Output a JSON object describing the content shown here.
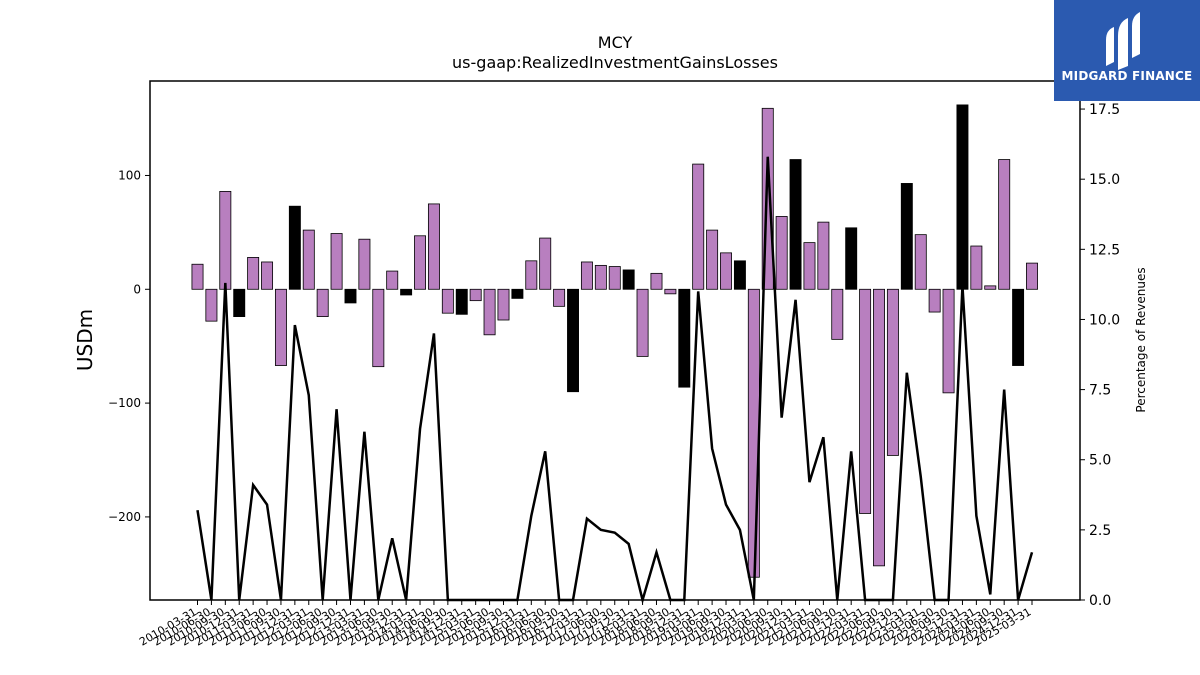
{
  "chart_data": {
    "type": "bar+line",
    "title": "MCY",
    "subtitle": "us-gaap:RealizedInvestmentGainsLosses",
    "ylabel_left": "USDm",
    "ylabel_right": "Percentage of Revenues",
    "ylim_left": [
      -273,
      183
    ],
    "ylim_right": [
      0,
      18.5
    ],
    "yticks_left": [
      -200,
      -100,
      0,
      100
    ],
    "yticks_right": [
      0.0,
      2.5,
      5.0,
      7.5,
      10.0,
      12.5,
      15.0,
      17.5
    ],
    "ytick_labels_left": [
      "−200",
      "−100",
      "0",
      "100"
    ],
    "ytick_labels_right": [
      "0.0",
      "2.5",
      "5.0",
      "7.5",
      "10.0",
      "12.5",
      "15.0",
      "17.5"
    ],
    "x_tick_labels": [
      "2010-03-31",
      "2010-06-30",
      "2010-09-30",
      "2010-12-31",
      "2011-03-31",
      "2011-06-30",
      "2011-09-30",
      "2011-12-31",
      "2012-03-31",
      "2012-06-30",
      "2012-09-30",
      "2012-12-31",
      "2013-03-31",
      "2013-06-30",
      "2013-09-30",
      "2013-12-31",
      "2014-03-31",
      "2014-06-30",
      "2014-09-30",
      "2014-12-31",
      "2015-03-31",
      "2015-06-30",
      "2015-09-30",
      "2015-12-31",
      "2016-03-31",
      "2016-06-30",
      "2016-09-30",
      "2016-12-31",
      "2017-03-31",
      "2017-06-30",
      "2017-09-30",
      "2017-12-31",
      "2018-03-31",
      "2018-06-30",
      "2018-09-30",
      "2018-12-31",
      "2019-03-31",
      "2019-06-30",
      "2019-09-30",
      "2019-12-31",
      "2020-03-31",
      "2020-06-30",
      "2020-09-30",
      "2020-12-31",
      "2021-03-31",
      "2021-06-30",
      "2021-09-30",
      "2021-12-31",
      "2022-03-31",
      "2022-06-30",
      "2022-09-30",
      "2022-12-31",
      "2023-03-31",
      "2023-06-30",
      "2023-09-30",
      "2023-12-31",
      "2024-03-31",
      "2024-06-30",
      "2024-09-30",
      "2024-12-31",
      "2025-03-31"
    ],
    "bar_values": [
      22,
      -28,
      86,
      -24,
      28,
      24,
      -67,
      73,
      52,
      -24,
      49,
      -12,
      44,
      -68,
      16,
      -5,
      47,
      75,
      -21,
      -22,
      -10,
      -40,
      -27,
      -8,
      25,
      45,
      -15,
      -90,
      24,
      21,
      20,
      17,
      -59,
      14,
      -4,
      -86,
      110,
      52,
      32,
      25,
      -253,
      159,
      64,
      114,
      41,
      59,
      -44,
      54,
      -197,
      -243,
      -146,
      93,
      48,
      -20,
      -91,
      162,
      38,
      3,
      114,
      -67,
      23
    ],
    "bar_colors": [
      "#b87fbf",
      "#b87fbf",
      "#b87fbf",
      "#000000",
      "#b87fbf",
      "#b87fbf",
      "#b87fbf",
      "#000000",
      "#b87fbf",
      "#b87fbf",
      "#b87fbf",
      "#000000",
      "#b87fbf",
      "#b87fbf",
      "#b87fbf",
      "#000000",
      "#b87fbf",
      "#b87fbf",
      "#b87fbf",
      "#000000",
      "#b87fbf",
      "#b87fbf",
      "#b87fbf",
      "#000000",
      "#b87fbf",
      "#b87fbf",
      "#b87fbf",
      "#000000",
      "#b87fbf",
      "#b87fbf",
      "#b87fbf",
      "#000000",
      "#b87fbf",
      "#b87fbf",
      "#b87fbf",
      "#000000",
      "#b87fbf",
      "#b87fbf",
      "#b87fbf",
      "#000000",
      "#b87fbf",
      "#b87fbf",
      "#b87fbf",
      "#000000",
      "#b87fbf",
      "#b87fbf",
      "#b87fbf",
      "#000000",
      "#b87fbf",
      "#b87fbf",
      "#b87fbf",
      "#000000",
      "#b87fbf",
      "#b87fbf",
      "#b87fbf",
      "#000000",
      "#b87fbf",
      "#b87fbf",
      "#b87fbf",
      "#000000",
      "#b87fbf"
    ],
    "line_values": [
      3.2,
      0,
      11.3,
      0,
      4.1,
      3.4,
      0,
      9.8,
      7.3,
      0,
      6.8,
      0,
      6.0,
      0,
      2.2,
      0,
      6.1,
      9.5,
      0,
      0,
      0,
      0,
      0,
      0,
      3.0,
      5.3,
      0,
      0,
      2.9,
      2.5,
      2.4,
      2.0,
      0,
      1.7,
      0,
      0,
      11.0,
      5.4,
      3.4,
      2.5,
      0,
      15.8,
      6.5,
      10.7,
      4.2,
      5.8,
      0,
      5.3,
      0,
      0,
      0,
      8.1,
      4.4,
      0,
      0,
      11.2,
      3.0,
      0.2,
      7.5,
      0,
      1.7
    ],
    "bar_edge_color": "#000000",
    "line_color": "#000000",
    "grid": false
  },
  "logo": {
    "text": "MIDGARD FINANCE",
    "bg_color": "#2b5ab0",
    "icon": "midgard-m-icon"
  }
}
